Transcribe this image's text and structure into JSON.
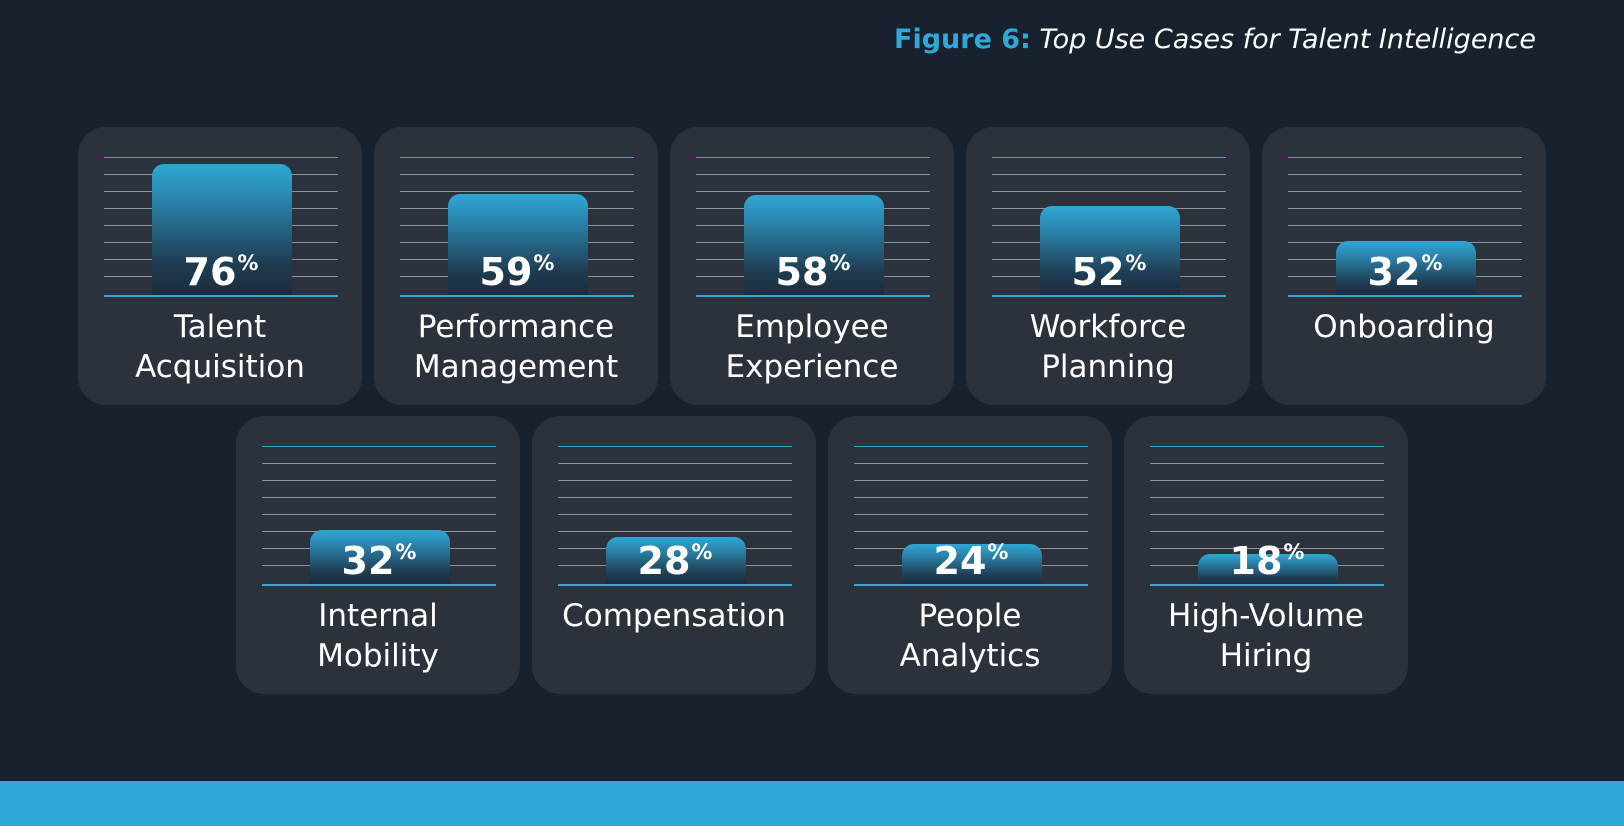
{
  "figure": {
    "label": "Figure 6:",
    "title": "Top Use Cases for Talent Intelligence"
  },
  "chart_data": {
    "type": "bar",
    "title": "Figure 6: Top Use Cases for Talent Intelligence",
    "unit": "%",
    "ylim": [
      0,
      80
    ],
    "categories": [
      [
        "Talent",
        "Acquisition"
      ],
      [
        "Performance",
        "Management"
      ],
      [
        "Employee",
        "Experience"
      ],
      [
        "Workforce",
        "Planning"
      ],
      [
        "Onboarding"
      ],
      [
        "Internal",
        "Mobility"
      ],
      [
        "Compensation"
      ],
      [
        "People",
        "Analytics"
      ],
      [
        "High-Volume",
        "Hiring"
      ]
    ],
    "values": [
      76,
      59,
      58,
      52,
      32,
      32,
      28,
      24,
      18
    ]
  },
  "colors": {
    "background": "#17222e",
    "card": "#2c323b",
    "accent": "#2fa9d7"
  }
}
